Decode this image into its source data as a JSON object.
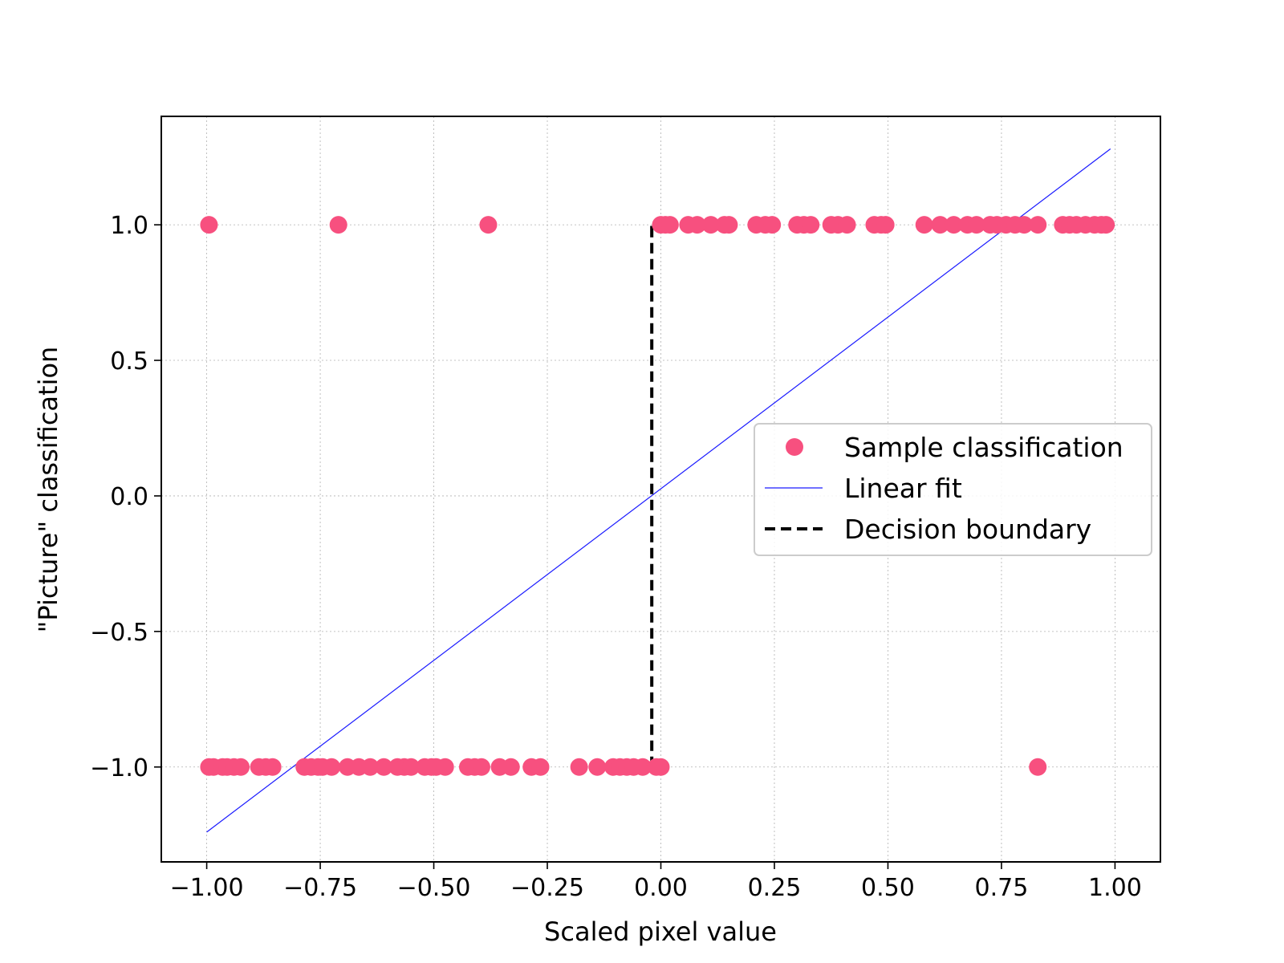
{
  "chart_data": {
    "type": "scatter",
    "xlabel": "Scaled pixel value",
    "ylabel": "\"Picture\" classification",
    "xlim": [
      -1.1,
      1.1
    ],
    "ylim": [
      -1.35,
      1.4
    ],
    "x_ticks": [
      -1.0,
      -0.75,
      -0.5,
      -0.25,
      0.0,
      0.25,
      0.5,
      0.75,
      1.0
    ],
    "x_tick_labels": [
      "−1.00",
      "−0.75",
      "−0.50",
      "−0.25",
      "0.00",
      "0.25",
      "0.50",
      "0.75",
      "1.00"
    ],
    "y_ticks": [
      -1.0,
      -0.5,
      0.0,
      0.5,
      1.0
    ],
    "y_tick_labels": [
      "−1.0",
      "−0.5",
      "0.0",
      "0.5",
      "1.0"
    ],
    "grid": true,
    "legend_position": "center-right",
    "colors": {
      "points": "#f7507f",
      "fit": "#1a1aff",
      "boundary": "#000000"
    },
    "series": [
      {
        "name": "Sample classification",
        "kind": "scatter",
        "points": [
          [
            -0.995,
            -1
          ],
          [
            -0.985,
            -1
          ],
          [
            -0.965,
            -1
          ],
          [
            -0.955,
            -1
          ],
          [
            -0.94,
            -1
          ],
          [
            -0.925,
            -1
          ],
          [
            -0.885,
            -1
          ],
          [
            -0.87,
            -1
          ],
          [
            -0.855,
            -1
          ],
          [
            -0.785,
            -1
          ],
          [
            -0.77,
            -1
          ],
          [
            -0.755,
            -1
          ],
          [
            -0.745,
            -1
          ],
          [
            -0.725,
            -1
          ],
          [
            -0.69,
            -1
          ],
          [
            -0.665,
            -1
          ],
          [
            -0.64,
            -1
          ],
          [
            -0.61,
            -1
          ],
          [
            -0.58,
            -1
          ],
          [
            -0.565,
            -1
          ],
          [
            -0.55,
            -1
          ],
          [
            -0.52,
            -1
          ],
          [
            -0.505,
            -1
          ],
          [
            -0.495,
            -1
          ],
          [
            -0.475,
            -1
          ],
          [
            -0.425,
            -1
          ],
          [
            -0.41,
            -1
          ],
          [
            -0.395,
            -1
          ],
          [
            -0.355,
            -1
          ],
          [
            -0.33,
            -1
          ],
          [
            -0.285,
            -1
          ],
          [
            -0.265,
            -1
          ],
          [
            -0.18,
            -1
          ],
          [
            -0.14,
            -1
          ],
          [
            -0.105,
            -1
          ],
          [
            -0.09,
            -1
          ],
          [
            -0.075,
            -1
          ],
          [
            -0.06,
            -1
          ],
          [
            -0.04,
            -1
          ],
          [
            -0.01,
            -1
          ],
          [
            0.0,
            -1
          ],
          [
            0.83,
            -1
          ],
          [
            -0.995,
            1
          ],
          [
            -0.71,
            1
          ],
          [
            -0.38,
            1
          ],
          [
            0.0,
            1
          ],
          [
            0.01,
            1
          ],
          [
            0.02,
            1
          ],
          [
            0.06,
            1
          ],
          [
            0.08,
            1
          ],
          [
            0.11,
            1
          ],
          [
            0.14,
            1
          ],
          [
            0.15,
            1
          ],
          [
            0.21,
            1
          ],
          [
            0.23,
            1
          ],
          [
            0.245,
            1
          ],
          [
            0.3,
            1
          ],
          [
            0.315,
            1
          ],
          [
            0.33,
            1
          ],
          [
            0.375,
            1
          ],
          [
            0.39,
            1
          ],
          [
            0.41,
            1
          ],
          [
            0.47,
            1
          ],
          [
            0.485,
            1
          ],
          [
            0.495,
            1
          ],
          [
            0.58,
            1
          ],
          [
            0.615,
            1
          ],
          [
            0.645,
            1
          ],
          [
            0.675,
            1
          ],
          [
            0.695,
            1
          ],
          [
            0.725,
            1
          ],
          [
            0.74,
            1
          ],
          [
            0.76,
            1
          ],
          [
            0.78,
            1
          ],
          [
            0.8,
            1
          ],
          [
            0.83,
            1
          ],
          [
            0.885,
            1
          ],
          [
            0.9,
            1
          ],
          [
            0.915,
            1
          ],
          [
            0.935,
            1
          ],
          [
            0.955,
            1
          ],
          [
            0.97,
            1
          ],
          [
            0.98,
            1
          ]
        ]
      },
      {
        "name": "Linear fit",
        "kind": "line",
        "points": [
          [
            -1.0,
            -1.24
          ],
          [
            0.99,
            1.28
          ]
        ]
      },
      {
        "name": "Decision boundary",
        "kind": "dashed-line",
        "points": [
          [
            -0.02,
            -1.0
          ],
          [
            -0.02,
            0.99
          ],
          [
            0.0,
            0.99
          ]
        ]
      }
    ]
  }
}
